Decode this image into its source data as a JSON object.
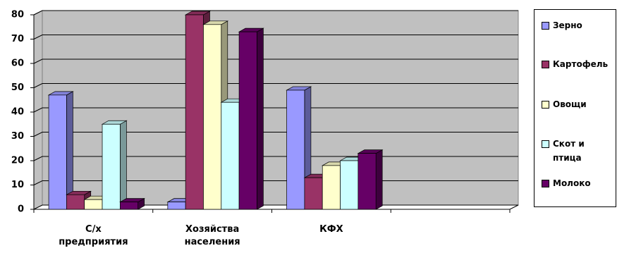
{
  "chart_data": {
    "type": "bar3d",
    "categories": [
      "С/х предприятия",
      "Хозяйства населения",
      "КФХ",
      null
    ],
    "series": [
      {
        "name": "Зерно",
        "color": "#9999ff",
        "values": [
          47,
          3,
          49,
          null
        ]
      },
      {
        "name": "Картофель",
        "color": "#993366",
        "values": [
          6,
          80,
          13,
          null
        ]
      },
      {
        "name": "Овощи",
        "color": "#ffffcc",
        "values": [
          4,
          76,
          18,
          null
        ]
      },
      {
        "name": "Скот и птица",
        "color": "#ccffff",
        "values": [
          35,
          44,
          20,
          null
        ]
      },
      {
        "name": "Молоко",
        "color": "#660066",
        "values": [
          3,
          73,
          23,
          null
        ]
      }
    ],
    "ylim": [
      0,
      80
    ],
    "yticks": [
      0,
      10,
      20,
      30,
      40,
      50,
      60,
      70,
      80
    ],
    "grid": true,
    "legend": "right"
  }
}
